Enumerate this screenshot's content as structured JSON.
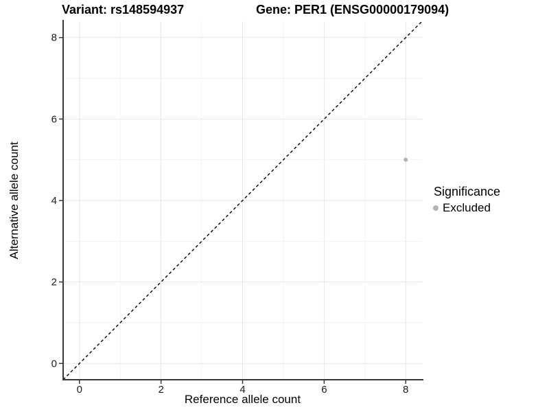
{
  "titles": {
    "left": "Variant: rs148594937",
    "right": "Gene: PER1 (ENSG00000179094)"
  },
  "axes": {
    "x": {
      "label": "Reference allele count"
    },
    "y": {
      "label": "Alternative allele count"
    }
  },
  "legend": {
    "title": "Significance",
    "items": [
      {
        "label": "Excluded",
        "color": "#b3b3b3"
      }
    ]
  },
  "chart_data": {
    "type": "scatter",
    "title": "Variant: rs148594937 | Gene: PER1 (ENSG00000179094)",
    "xlabel": "Reference allele count",
    "ylabel": "Alternative allele count",
    "xlim": [
      -0.4,
      8.4
    ],
    "ylim": [
      -0.4,
      8.4
    ],
    "x_ticks": [
      0,
      2,
      4,
      6,
      8
    ],
    "y_ticks": [
      0,
      2,
      4,
      6,
      8
    ],
    "grid": "major and minor, light grey on white panel",
    "legend_position": "right",
    "series": [
      {
        "name": "Excluded",
        "color": "#b3b3b3",
        "marker": "circle",
        "points": [
          [
            8,
            5
          ]
        ]
      }
    ],
    "reference_line": {
      "slope": 1,
      "intercept": 0,
      "style": "dashed",
      "color": "#000000",
      "meaning": "identity line y = x"
    },
    "colors": {
      "axis_line": "#383838",
      "tick_label": "#1a1a1a",
      "grid_major": "#e6e6e6",
      "grid_minor": "#f2f2f2"
    }
  }
}
